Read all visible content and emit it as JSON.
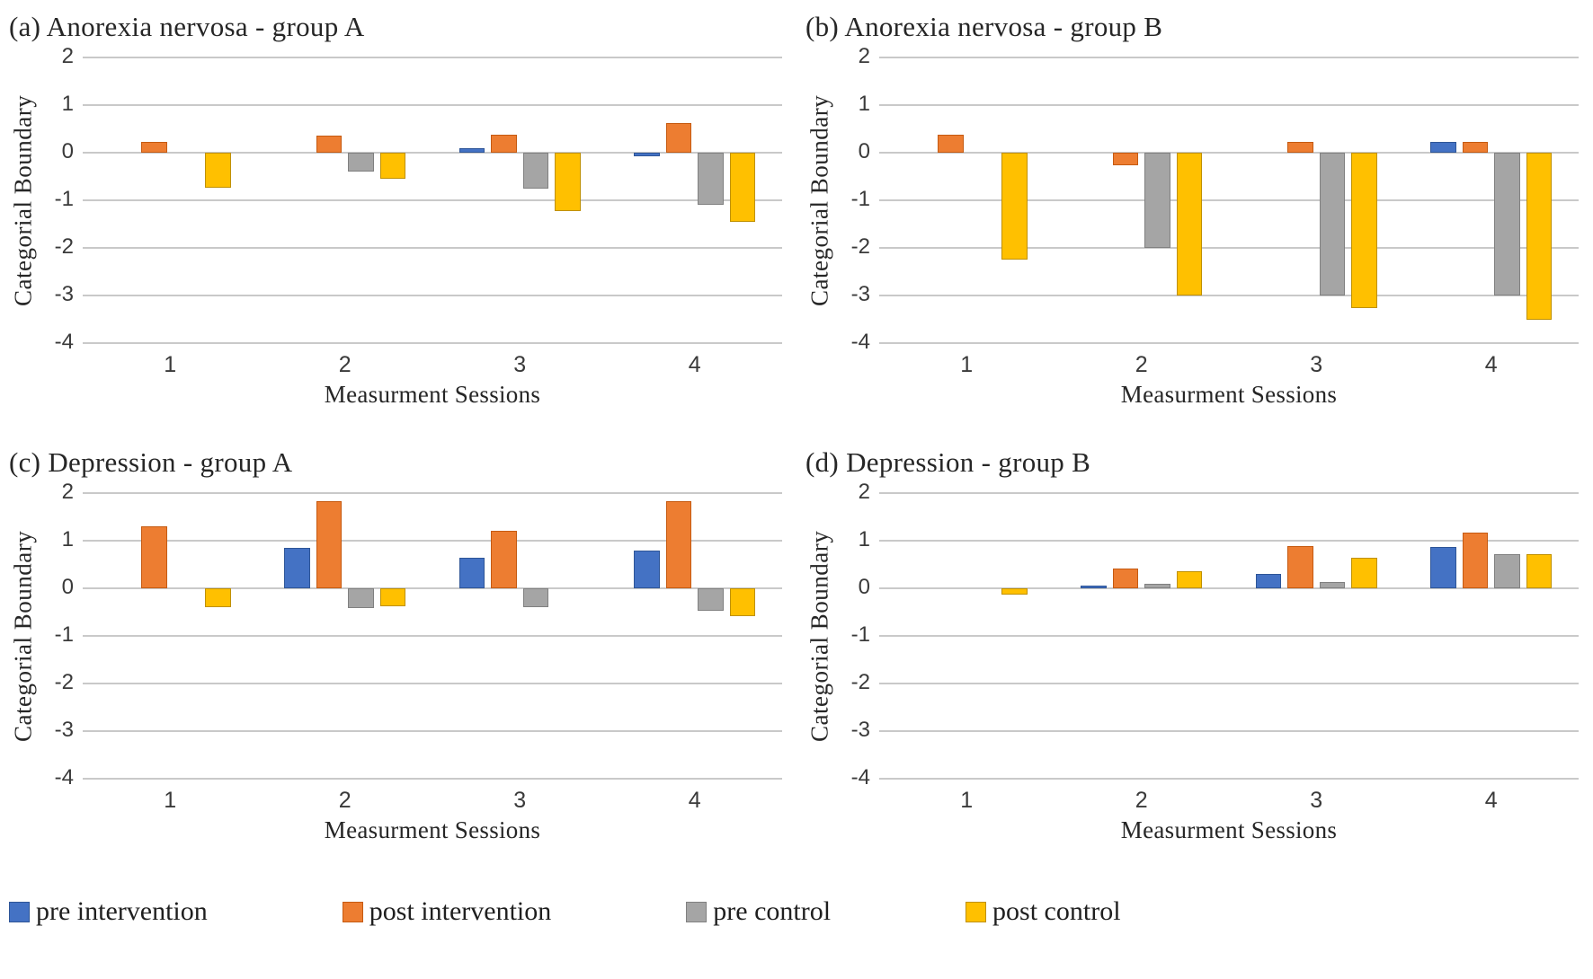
{
  "legend": [
    {
      "label": "pre intervention",
      "color": "#4472C4",
      "border": "#2E5597"
    },
    {
      "label": "post intervention",
      "color": "#ED7D31",
      "border": "#C55A11"
    },
    {
      "label": "pre control",
      "color": "#A5A5A5",
      "border": "#808080"
    },
    {
      "label": "post control",
      "color": "#FFC000",
      "border": "#BF9000"
    }
  ],
  "chart_data": [
    {
      "type": "bar",
      "title": "(a) Anorexia nervosa - group A",
      "xlabel": "Measurment Sessions",
      "ylabel": "Categorial Boundary",
      "categories": [
        "1",
        "2",
        "3",
        "4"
      ],
      "ylim": [
        -4,
        2
      ],
      "yticks": [
        2,
        1,
        0,
        -1,
        -2,
        -3,
        -4
      ],
      "grid": true,
      "legend_position": "bottom",
      "series": [
        {
          "name": "pre intervention",
          "color": "#4472C4",
          "border": "#2E5597",
          "values": [
            0,
            0,
            0.1,
            -0.08
          ]
        },
        {
          "name": "post intervention",
          "color": "#ED7D31",
          "border": "#C55A11",
          "values": [
            0.22,
            0.36,
            0.38,
            0.62
          ]
        },
        {
          "name": "pre control",
          "color": "#A5A5A5",
          "border": "#808080",
          "values": [
            0,
            -0.4,
            -0.75,
            -1.1
          ]
        },
        {
          "name": "post control",
          "color": "#FFC000",
          "border": "#BF9000",
          "values": [
            -0.73,
            -0.55,
            -1.22,
            -1.45
          ]
        }
      ]
    },
    {
      "type": "bar",
      "title": "(b) Anorexia nervosa - group B",
      "xlabel": "Measurment Sessions",
      "ylabel": "Categorial Boundary",
      "categories": [
        "1",
        "2",
        "3",
        "4"
      ],
      "ylim": [
        -4,
        2
      ],
      "yticks": [
        2,
        1,
        0,
        -1,
        -2,
        -3,
        -4
      ],
      "grid": true,
      "legend_position": "bottom",
      "series": [
        {
          "name": "pre intervention",
          "color": "#4472C4",
          "border": "#2E5597",
          "values": [
            0,
            0,
            0,
            0.23
          ]
        },
        {
          "name": "post intervention",
          "color": "#ED7D31",
          "border": "#C55A11",
          "values": [
            0.38,
            -0.27,
            0.22,
            0.22
          ]
        },
        {
          "name": "pre control",
          "color": "#A5A5A5",
          "border": "#808080",
          "values": [
            0,
            -2.0,
            -3.0,
            -3.0
          ]
        },
        {
          "name": "post control",
          "color": "#FFC000",
          "border": "#BF9000",
          "values": [
            -2.25,
            -3.0,
            -3.27,
            -3.5
          ]
        }
      ]
    },
    {
      "type": "bar",
      "title": "(c) Depression - group A",
      "xlabel": "Measurment Sessions",
      "ylabel": "Categorial Boundary",
      "categories": [
        "1",
        "2",
        "3",
        "4"
      ],
      "ylim": [
        -4,
        2
      ],
      "yticks": [
        2,
        1,
        0,
        -1,
        -2,
        -3,
        -4
      ],
      "grid": true,
      "legend_position": "bottom",
      "series": [
        {
          "name": "pre intervention",
          "color": "#4472C4",
          "border": "#2E5597",
          "values": [
            0,
            0.85,
            0.65,
            0.8
          ]
        },
        {
          "name": "post intervention",
          "color": "#ED7D31",
          "border": "#C55A11",
          "values": [
            1.3,
            1.83,
            1.2,
            1.83
          ]
        },
        {
          "name": "pre control",
          "color": "#A5A5A5",
          "border": "#808080",
          "values": [
            0,
            -0.42,
            -0.4,
            -0.48
          ]
        },
        {
          "name": "post control",
          "color": "#FFC000",
          "border": "#BF9000",
          "values": [
            -0.4,
            -0.38,
            0,
            -0.58
          ]
        }
      ]
    },
    {
      "type": "bar",
      "title": "(d) Depression - group B",
      "xlabel": "Measurment Sessions",
      "ylabel": "Categorial Boundary",
      "categories": [
        "1",
        "2",
        "3",
        "4"
      ],
      "ylim": [
        -4,
        2
      ],
      "yticks": [
        2,
        1,
        0,
        -1,
        -2,
        -3,
        -4
      ],
      "grid": true,
      "legend_position": "bottom",
      "series": [
        {
          "name": "pre intervention",
          "color": "#4472C4",
          "border": "#2E5597",
          "values": [
            0,
            0.05,
            0.3,
            0.86
          ]
        },
        {
          "name": "post intervention",
          "color": "#ED7D31",
          "border": "#C55A11",
          "values": [
            0,
            0.41,
            0.89,
            1.17
          ]
        },
        {
          "name": "pre control",
          "color": "#A5A5A5",
          "border": "#808080",
          "values": [
            0,
            0.1,
            0.13,
            0.72
          ]
        },
        {
          "name": "post control",
          "color": "#FFC000",
          "border": "#BF9000",
          "values": [
            -0.13,
            0.35,
            0.65,
            0.72
          ]
        }
      ]
    }
  ]
}
